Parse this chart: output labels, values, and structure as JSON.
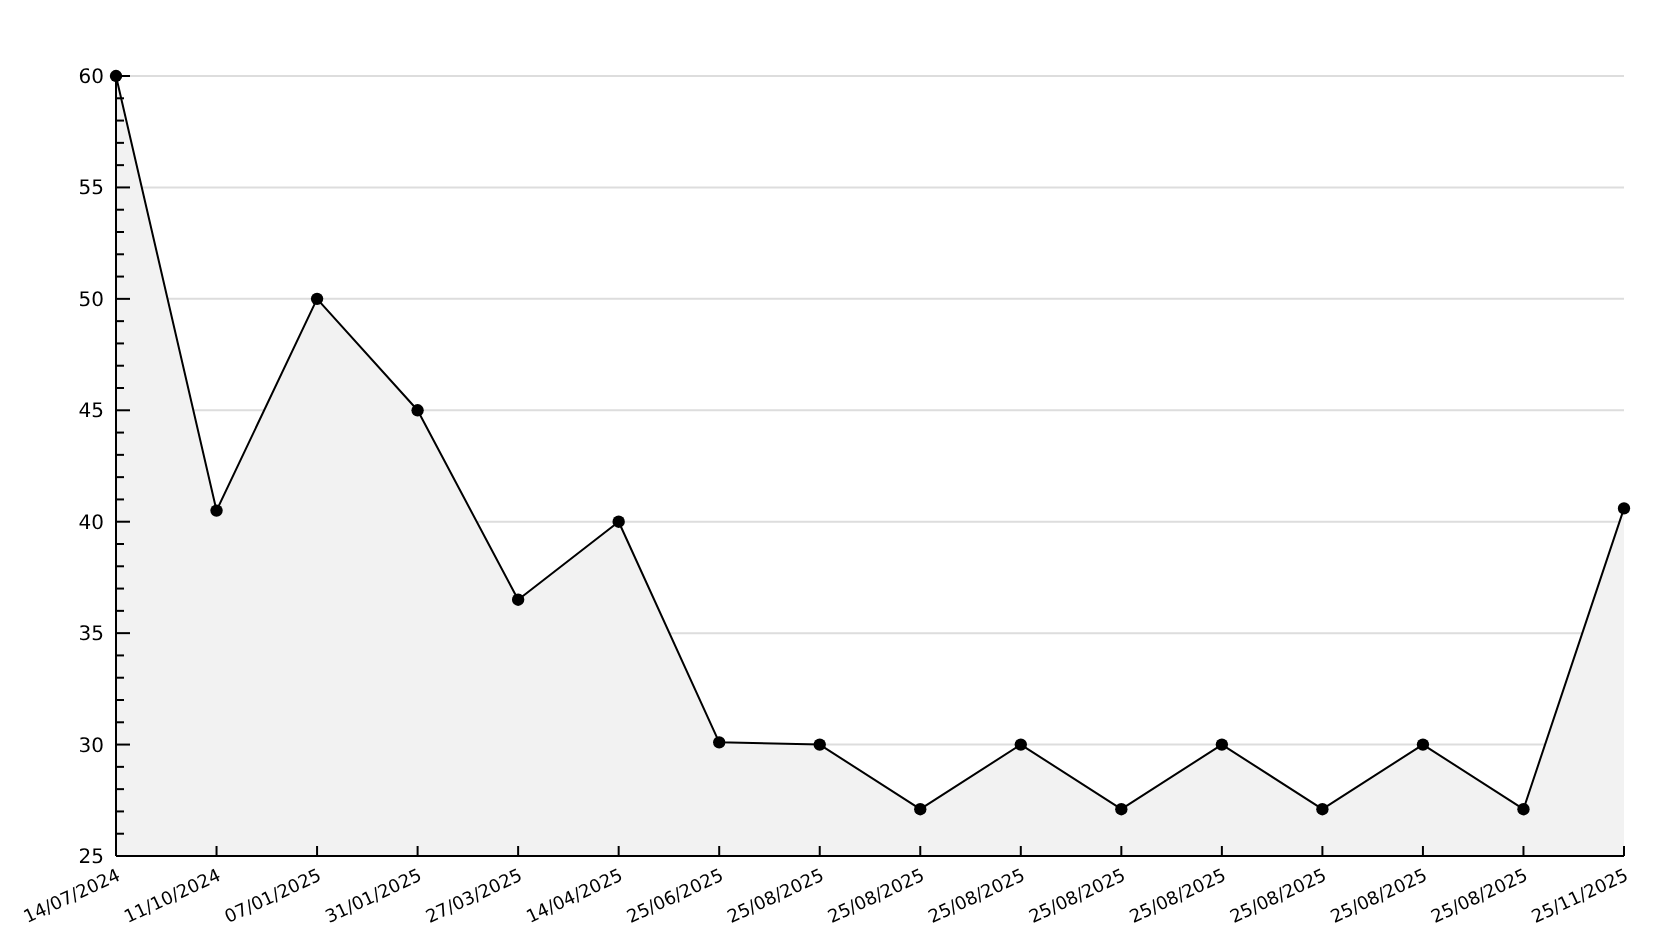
{
  "chart_data": {
    "type": "area",
    "categories": [
      "14/07/2024",
      "11/10/2024",
      "07/01/2025",
      "31/01/2025",
      "27/03/2025",
      "14/04/2025",
      "25/06/2025",
      "25/08/2025",
      "25/08/2025",
      "25/08/2025",
      "25/08/2025",
      "25/08/2025",
      "25/08/2025",
      "25/08/2025",
      "25/08/2025",
      "25/11/2025"
    ],
    "series": [
      {
        "color": "#000000",
        "values": [
          60,
          40.5,
          50,
          45,
          36.5,
          40,
          30.1,
          30,
          27.1,
          30,
          27.1,
          30,
          27.1,
          30,
          27.1,
          40.6
        ]
      }
    ],
    "ylim": [
      25,
      60
    ],
    "yticks": [
      25,
      {
        "value": 26,
        "label": null
      },
      {
        "value": 27,
        "label": null
      },
      {
        "value": 28,
        "label": null
      },
      {
        "value": 29,
        "label": null
      },
      30,
      {
        "value": 31,
        "label": null
      },
      {
        "value": 32,
        "label": null
      },
      {
        "value": 33,
        "label": null
      },
      {
        "value": 34,
        "label": null
      },
      35,
      {
        "value": 36,
        "label": null
      },
      {
        "value": 37,
        "label": null
      },
      {
        "value": 38,
        "label": null
      },
      {
        "value": 39,
        "label": null
      },
      40,
      {
        "value": 41,
        "label": null
      },
      {
        "value": 42,
        "label": null
      },
      {
        "value": 43,
        "label": null
      },
      {
        "value": 44,
        "label": null
      },
      45,
      {
        "value": 46,
        "label": null
      },
      {
        "value": 47,
        "label": null
      },
      {
        "value": 48,
        "label": null
      },
      {
        "value": 49,
        "label": null
      },
      50,
      {
        "value": 51,
        "label": null
      },
      {
        "value": 52,
        "label": null
      },
      {
        "value": 53,
        "label": null
      },
      {
        "value": 54,
        "label": null
      },
      55,
      {
        "value": 56,
        "label": null
      },
      {
        "value": 57,
        "label": null
      },
      {
        "value": 58,
        "label": null
      },
      {
        "value": 59,
        "label": null
      },
      60
    ],
    "grid": "y",
    "marker": "circle",
    "line_style": "solid"
  }
}
